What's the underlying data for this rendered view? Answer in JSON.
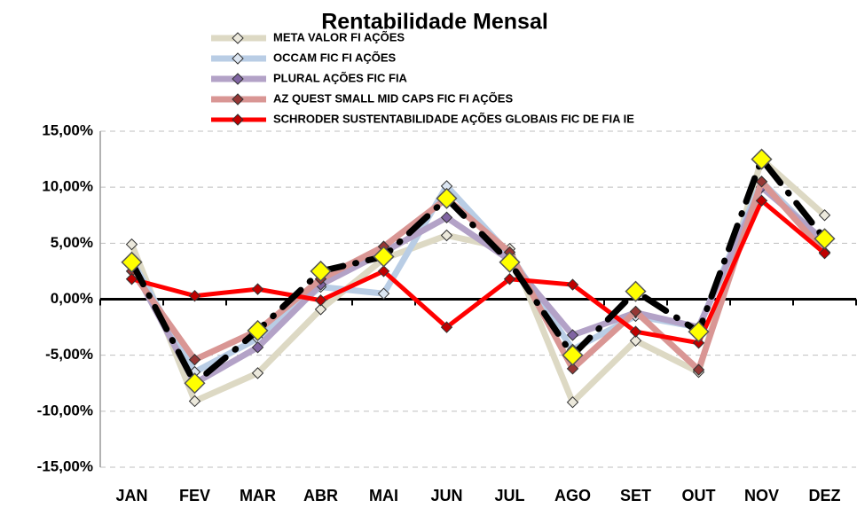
{
  "chart_data": {
    "type": "line",
    "title": "Rentabilidade Mensal",
    "categories": [
      "JAN",
      "FEV",
      "MAR",
      "ABR",
      "MAI",
      "JUN",
      "JUL",
      "AGO",
      "SET",
      "OUT",
      "NOV",
      "DEZ"
    ],
    "series": [
      {
        "name": "META VALOR FI AÇÕES",
        "color": "#ddd9c4",
        "marker_color": "#ece9dc",
        "values": [
          4.9,
          -9.1,
          -6.6,
          -0.9,
          3.6,
          5.7,
          4.5,
          -9.2,
          -3.7,
          -6.5,
          12.5,
          7.5
        ]
      },
      {
        "name": "OCCAM FIC FI AÇÕES",
        "color": "#b9cde5",
        "marker_color": "#dce6f2",
        "values": [
          3.5,
          -6.5,
          -3.5,
          1.1,
          0.5,
          10.1,
          4.0,
          -4.5,
          -1.5,
          -2.5,
          10.5,
          5.0
        ]
      },
      {
        "name": "PLURAL AÇÕES FIC FIA",
        "color": "#b3a2c7",
        "marker_color": "#8064a2",
        "values": [
          3.0,
          -7.5,
          -4.3,
          1.3,
          4.2,
          7.3,
          3.5,
          -3.2,
          -1.2,
          -2.5,
          10.0,
          5.2
        ]
      },
      {
        "name": "AZ QUEST SMALL MID CAPS FIC FI AÇÕES",
        "color": "#d99694",
        "marker_color": "#953735",
        "values": [
          2.5,
          -5.4,
          -2.8,
          1.8,
          4.7,
          9.0,
          4.2,
          -6.2,
          -1.1,
          -6.3,
          10.5,
          4.2
        ]
      },
      {
        "name": "SCHRODER SUSTENTABILIDADE AÇÕES GLOBAIS FIC DE FIA IE",
        "color": "#ff0000",
        "marker_color": "#c00000",
        "values": [
          1.8,
          0.3,
          0.9,
          -0.1,
          2.5,
          -2.5,
          1.8,
          1.3,
          -2.9,
          -3.9,
          8.8,
          4.1
        ]
      },
      {
        "color": "#000000",
        "marker_color": "#ffff00",
        "line_style": "dashdot",
        "values": [
          3.3,
          -7.5,
          -2.8,
          2.5,
          3.8,
          9.0,
          3.3,
          -5.0,
          0.7,
          -2.9,
          12.5,
          5.4
        ]
      }
    ],
    "ylim": [
      -15,
      15
    ],
    "yticks": [
      {
        "value": -15,
        "label": "-15,00%"
      },
      {
        "value": -10,
        "label": "-10,00%"
      },
      {
        "value": -5,
        "label": "-5,00%"
      },
      {
        "value": 0,
        "label": "0,00%"
      },
      {
        "value": 5,
        "label": "5,00%"
      },
      {
        "value": 10,
        "label": "10,00%"
      },
      {
        "value": 15,
        "label": "15,00%"
      }
    ],
    "grid": true,
    "legend": "top"
  }
}
